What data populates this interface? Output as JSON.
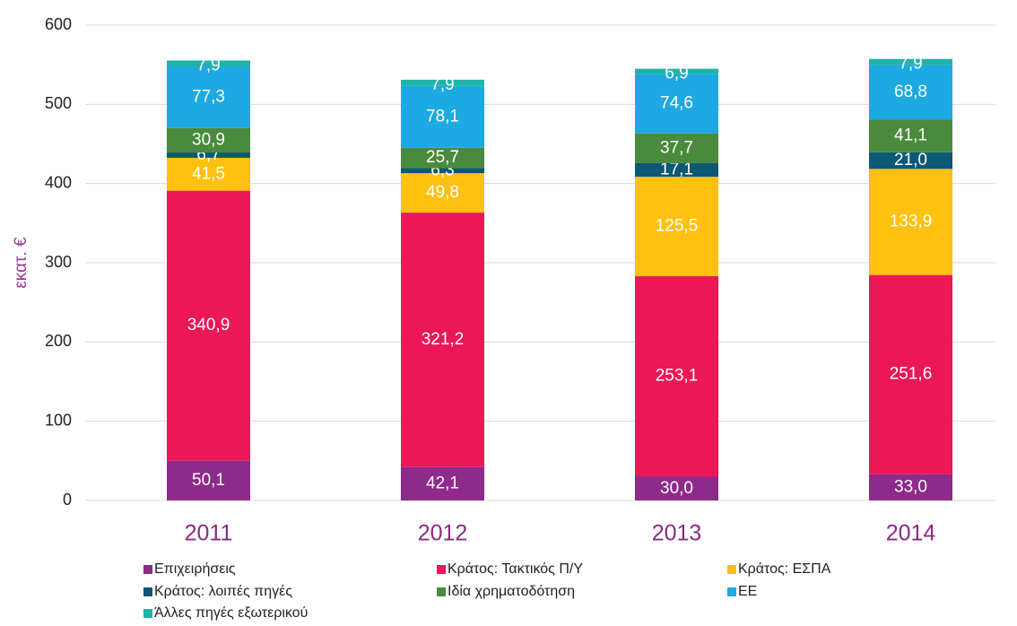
{
  "chart_data": {
    "type": "stacked_bar",
    "ylabel": "εκατ. €",
    "categories": [
      "2011",
      "2012",
      "2013",
      "2014"
    ],
    "ylim": [
      0,
      600
    ],
    "yticks": [
      0,
      100,
      200,
      300,
      400,
      500,
      600
    ],
    "grid": true,
    "series": [
      {
        "name": "Επιχειρήσεις",
        "color": "#8e2a8a",
        "values": [
          50.1,
          42.1,
          30.0,
          33.0
        ],
        "value_labels": [
          "50,1",
          "42,1",
          "30,0",
          "33,0"
        ]
      },
      {
        "name": "Κράτος: Τακτικός Π/Υ",
        "color": "#eb1757",
        "values": [
          340.9,
          321.2,
          253.1,
          251.6
        ],
        "value_labels": [
          "340,9",
          "321,2",
          "253,1",
          "251,6"
        ]
      },
      {
        "name": "Κράτος: ΕΣΠΑ",
        "color": "#ffc110",
        "values": [
          41.5,
          49.8,
          125.5,
          133.9
        ],
        "value_labels": [
          "41,5",
          "49,8",
          "125,5",
          "133,9"
        ]
      },
      {
        "name": "Κράτος: λοιπές πηγές",
        "color": "#0d5874",
        "values": [
          6.7,
          6.3,
          17.1,
          21.0
        ],
        "value_labels": [
          "6,7",
          "6,3",
          "17,1",
          "21,0"
        ]
      },
      {
        "name": "Ιδία χρηματοδότηση",
        "color": "#4a8a3c",
        "values": [
          30.9,
          25.7,
          37.7,
          41.1
        ],
        "value_labels": [
          "30,9",
          "25,7",
          "37,7",
          "41,1"
        ]
      },
      {
        "name": "ΕΕ",
        "color": "#1da9e1",
        "values": [
          77.3,
          78.1,
          74.6,
          68.8
        ],
        "value_labels": [
          "77,3",
          "78,1",
          "74,6",
          "68,8"
        ]
      },
      {
        "name": "Άλλες πηγές εξωτερικού",
        "color": "#1fb3aa",
        "values": [
          7.9,
          7.9,
          6.9,
          7.9
        ],
        "value_labels": [
          "7,9",
          "7,9",
          "6,9",
          "7,9"
        ]
      }
    ]
  }
}
